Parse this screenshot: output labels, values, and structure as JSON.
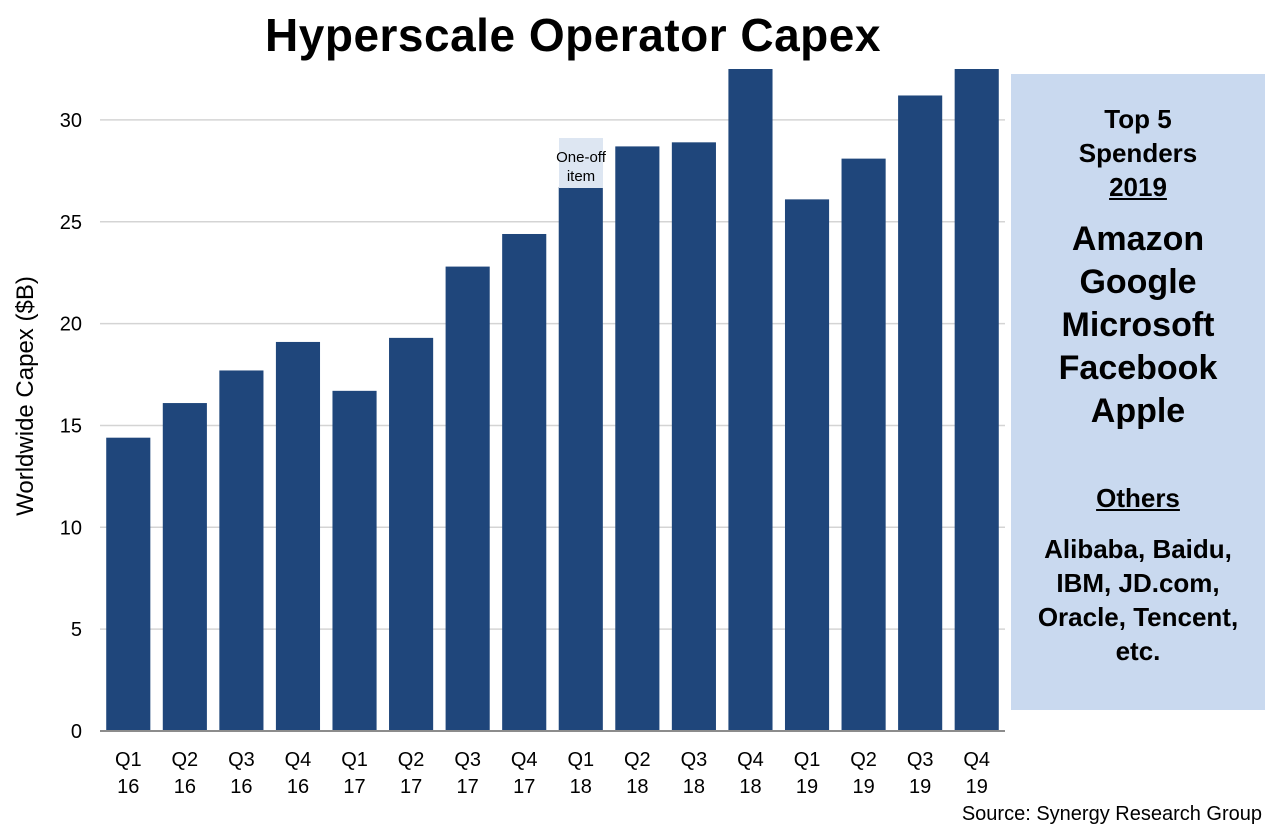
{
  "chart_data": {
    "type": "bar",
    "title": "Hyperscale Operator Capex",
    "ylabel": "Worldwide Capex ($B)",
    "xlabel": "",
    "ylim": [
      0,
      32.5
    ],
    "yticks": [
      0,
      5,
      10,
      15,
      20,
      25,
      30
    ],
    "grid": true,
    "bar_color": "#1f467b",
    "categories": [
      [
        "Q1",
        "16"
      ],
      [
        "Q2",
        "16"
      ],
      [
        "Q3",
        "16"
      ],
      [
        "Q4",
        "16"
      ],
      [
        "Q1",
        "17"
      ],
      [
        "Q2",
        "17"
      ],
      [
        "Q3",
        "17"
      ],
      [
        "Q4",
        "17"
      ],
      [
        "Q1",
        "18"
      ],
      [
        "Q2",
        "18"
      ],
      [
        "Q3",
        "18"
      ],
      [
        "Q4",
        "18"
      ],
      [
        "Q1",
        "19"
      ],
      [
        "Q2",
        "19"
      ],
      [
        "Q3",
        "19"
      ],
      [
        "Q4",
        "19"
      ]
    ],
    "values": [
      14.4,
      16.1,
      17.7,
      19.1,
      16.7,
      19.3,
      22.8,
      24.4,
      26.7,
      28.7,
      28.9,
      32.8,
      26.1,
      28.1,
      31.2,
      32.8
    ],
    "annotation": {
      "text_line1": "One-off",
      "text_line2": "item",
      "category_index": 8,
      "value": 29.1
    }
  },
  "side_panel": {
    "heading_line1": "Top 5",
    "heading_line2": "Spenders",
    "heading_year": "2019",
    "top5": [
      "Amazon",
      "Google",
      "Microsoft",
      "Facebook",
      "Apple"
    ],
    "others_title": "Others",
    "others_lines": [
      "Alibaba, Baidu,",
      "IBM, JD.com,",
      "Oracle, Tencent,",
      "etc."
    ],
    "background": "#c9d9ef"
  },
  "source": "Source: Synergy Research Group"
}
